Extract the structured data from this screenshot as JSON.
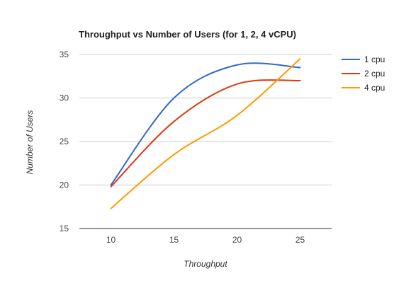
{
  "chart_data": {
    "type": "line",
    "title": "Throughput vs Number of Users (for 1, 2, 4 vCPU)",
    "xlabel": "Throughput",
    "ylabel": "Number of Users",
    "x": [
      10,
      15,
      20,
      25
    ],
    "xlim": [
      7.5,
      27.5
    ],
    "ylim": [
      15,
      35
    ],
    "xticks": [
      10,
      15,
      20,
      25
    ],
    "yticks": [
      15,
      20,
      25,
      30,
      35
    ],
    "grid": true,
    "legend": "right",
    "series": [
      {
        "name": "1 cpu",
        "color": "#3366cc",
        "values": [
          20,
          30,
          33.8,
          33.5
        ]
      },
      {
        "name": "2 cpu",
        "color": "#dc3912",
        "values": [
          19.8,
          27.3,
          31.6,
          32
        ]
      },
      {
        "name": "4 cpu",
        "color": "#ff9900",
        "values": [
          17.3,
          23.5,
          28,
          34.5
        ]
      }
    ]
  }
}
